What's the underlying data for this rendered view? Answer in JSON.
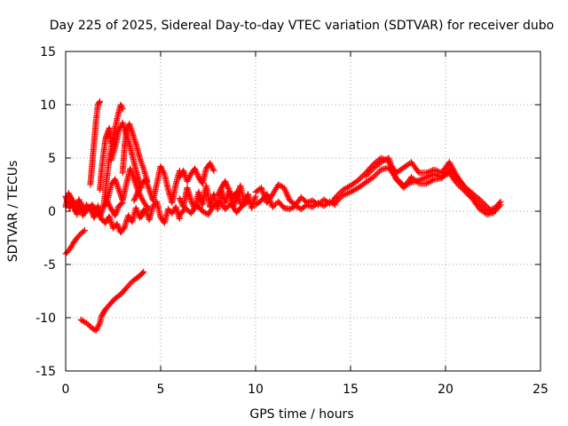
{
  "chart_data": {
    "type": "scatter",
    "title": "Day 225 of 2025, Sidereal Day-to-day VTEC variation (SDTVAR) for receiver dubo",
    "xlabel": "GPS time / hours",
    "ylabel": "SDTVAR / TECUs",
    "xlim": [
      0,
      25
    ],
    "ylim": [
      -15,
      15
    ],
    "xticks": [
      0,
      5,
      10,
      15,
      20,
      25
    ],
    "yticks": [
      -15,
      -10,
      -5,
      0,
      5,
      10,
      15
    ],
    "grid": true,
    "marker": "plus",
    "color": "#ff0000",
    "series": [
      {
        "name": "SDTVAR",
        "traces": [
          {
            "x": [
              0.0,
              0.2,
              0.4,
              0.6,
              0.8,
              1.0
            ],
            "y": [
              -4.0,
              -3.6,
              -3.0,
              -2.5,
              -2.1,
              -1.8
            ]
          },
          {
            "x": [
              0.8,
              1.1,
              1.4,
              1.6,
              1.8,
              1.9,
              2.1,
              2.3,
              2.6,
              2.9,
              3.2,
              3.5,
              3.8,
              4.0,
              4.1
            ],
            "y": [
              -10.2,
              -10.5,
              -11.0,
              -11.2,
              -10.5,
              -9.8,
              -9.2,
              -8.8,
              -8.2,
              -7.8,
              -7.2,
              -6.6,
              -6.2,
              -5.9,
              -5.7
            ]
          },
          {
            "x": [
              0.0,
              0.1,
              0.2,
              0.3,
              0.4,
              0.5,
              0.6,
              0.7,
              0.8,
              0.9,
              1.0,
              1.2,
              1.4,
              1.6,
              1.8,
              2.0,
              2.2,
              2.4,
              2.6,
              2.8,
              3.0
            ],
            "y": [
              1.4,
              0.9,
              0.3,
              0.6,
              1.0,
              0.2,
              -0.3,
              0.4,
              0.8,
              0.1,
              -0.2,
              0.3,
              0.6,
              0.0,
              -0.5,
              0.4,
              0.9,
              0.2,
              -0.4,
              0.5,
              0.8
            ]
          },
          {
            "x": [
              0.0,
              0.15,
              0.3,
              0.5,
              0.7,
              0.9,
              1.1,
              1.3,
              1.5,
              1.7,
              1.9,
              2.1,
              2.3,
              2.5,
              2.7,
              2.9,
              3.1,
              3.3,
              3.5,
              3.7,
              3.9,
              4.1
            ],
            "y": [
              0.4,
              1.7,
              1.2,
              0.0,
              1.1,
              -0.4,
              0.6,
              0.2,
              -0.6,
              0.5,
              -0.8,
              -1.1,
              -0.5,
              -1.6,
              -1.2,
              -2.0,
              -1.5,
              -0.4,
              -1.0,
              0.3,
              -0.6,
              0.1
            ]
          },
          {
            "x": [
              1.3,
              1.4,
              1.5,
              1.6,
              1.7,
              1.8
            ],
            "y": [
              2.5,
              4.5,
              6.5,
              8.5,
              10.0,
              10.3
            ]
          },
          {
            "x": [
              1.8,
              1.9,
              2.0,
              2.1,
              2.2,
              2.3,
              2.4
            ],
            "y": [
              2.0,
              4.0,
              5.5,
              6.8,
              7.3,
              7.8,
              6.4
            ]
          },
          {
            "x": [
              2.0,
              2.15,
              2.3,
              2.45,
              2.6,
              2.75,
              2.9,
              3.0
            ],
            "y": [
              0.5,
              2.8,
              5.0,
              6.5,
              7.8,
              9.0,
              10.0,
              9.6
            ]
          },
          {
            "x": [
              2.4,
              2.6,
              2.8,
              3.0,
              3.2,
              3.4,
              3.6,
              3.8,
              4.0
            ],
            "y": [
              4.8,
              6.0,
              7.6,
              8.3,
              7.2,
              6.0,
              4.6,
              3.2,
              2.2
            ]
          },
          {
            "x": [
              3.0,
              3.1,
              3.2,
              3.35,
              3.5,
              3.7,
              3.9,
              4.1,
              4.3
            ],
            "y": [
              3.6,
              6.0,
              7.5,
              8.2,
              7.4,
              6.3,
              5.0,
              4.0,
              2.8
            ]
          },
          {
            "x": [
              2.2,
              2.4,
              2.6,
              2.8,
              3.0,
              3.2,
              3.4,
              3.6,
              3.8,
              4.0,
              4.2,
              4.4
            ],
            "y": [
              1.0,
              2.5,
              3.0,
              2.0,
              1.0,
              2.6,
              4.0,
              3.0,
              2.0,
              1.2,
              0.6,
              0.2
            ]
          },
          {
            "x": [
              3.6,
              3.8,
              4.0,
              4.2,
              4.4,
              4.6,
              4.8,
              5.0,
              5.2,
              5.4,
              5.6,
              5.8,
              6.0
            ],
            "y": [
              1.0,
              1.8,
              2.5,
              3.0,
              2.0,
              1.0,
              2.6,
              4.2,
              3.5,
              2.0,
              0.8,
              2.5,
              3.8
            ]
          },
          {
            "x": [
              4.0,
              4.2,
              4.4,
              4.6,
              4.8,
              5.0,
              5.2,
              5.4,
              5.6,
              5.8,
              6.0
            ],
            "y": [
              -0.5,
              0.2,
              -0.8,
              0.5,
              0.9,
              -0.6,
              -1.1,
              0.2,
              -0.2,
              0.4,
              -0.7
            ]
          },
          {
            "x": [
              6.0,
              6.2,
              6.4,
              6.6,
              6.8,
              7.0,
              7.2,
              7.4,
              7.6,
              7.8
            ],
            "y": [
              3.2,
              3.8,
              2.8,
              3.5,
              4.0,
              3.2,
              2.6,
              4.0,
              4.5,
              3.8
            ]
          },
          {
            "x": [
              6.0,
              6.2,
              6.4,
              6.6,
              6.8,
              7.0,
              7.2,
              7.4,
              7.6,
              7.8,
              8.0,
              8.2,
              8.4,
              8.6,
              8.8,
              9.0,
              9.2,
              9.4,
              9.6,
              9.8,
              10.0
            ],
            "y": [
              1.2,
              0.4,
              2.2,
              1.0,
              0.2,
              1.8,
              0.6,
              2.4,
              0.4,
              1.6,
              0.2,
              2.0,
              0.8,
              1.8,
              0.4,
              1.2,
              2.4,
              0.8,
              1.6,
              0.3,
              1.4
            ]
          },
          {
            "x": [
              6.0,
              6.3,
              6.6,
              6.9,
              7.2,
              7.5,
              7.8,
              8.1,
              8.4,
              8.7,
              9.0,
              9.3,
              9.6
            ],
            "y": [
              -0.4,
              0.3,
              -0.2,
              0.6,
              0.0,
              -0.3,
              0.5,
              0.9,
              0.2,
              0.7,
              -0.1,
              0.5,
              0.9
            ]
          },
          {
            "x": [
              8.0,
              8.2,
              8.4,
              8.6,
              8.8,
              9.0,
              9.2
            ],
            "y": [
              1.5,
              2.2,
              2.8,
              2.0,
              1.2,
              1.8,
              0.7
            ]
          },
          {
            "x": [
              10.0,
              10.3,
              10.6,
              10.9,
              11.2,
              11.5,
              11.8,
              12.1,
              12.4,
              12.7,
              13.0,
              13.3,
              13.6,
              13.9,
              14.2
            ],
            "y": [
              1.8,
              2.2,
              0.8,
              1.6,
              2.5,
              2.2,
              1.0,
              0.6,
              1.3,
              0.8,
              1.0,
              0.6,
              1.1,
              0.7,
              1.2
            ]
          },
          {
            "x": [
              10.0,
              10.3,
              10.6,
              10.9,
              11.2,
              11.5,
              11.8,
              12.1,
              12.4,
              12.7,
              13.0,
              13.3,
              13.6,
              13.9,
              14.2
            ],
            "y": [
              0.6,
              1.0,
              1.6,
              0.4,
              0.9,
              0.3,
              0.2,
              0.5,
              0.2,
              0.6,
              0.4,
              0.8,
              0.5,
              0.9,
              0.6
            ]
          },
          {
            "x": [
              14.2,
              14.6,
              15.0,
              15.4,
              15.8,
              16.2,
              16.6,
              17.0,
              17.4,
              17.8,
              18.2,
              18.6,
              19.0,
              19.4,
              19.8,
              20.2,
              20.6,
              21.0,
              21.4,
              21.8,
              22.2,
              22.6,
              22.9
            ],
            "y": [
              1.3,
              2.0,
              2.4,
              2.9,
              3.6,
              4.4,
              5.0,
              4.7,
              3.6,
              4.1,
              4.6,
              3.6,
              3.6,
              3.9,
              3.6,
              4.6,
              3.3,
              2.2,
              1.3,
              0.6,
              0.0,
              0.3,
              0.9
            ]
          },
          {
            "x": [
              14.2,
              14.6,
              15.0,
              15.4,
              15.8,
              16.2,
              16.6,
              17.0,
              17.4,
              17.8,
              18.2,
              18.6,
              19.0,
              19.4,
              19.8,
              20.2,
              20.6,
              21.0,
              21.4,
              21.8,
              22.2,
              22.6,
              22.9
            ],
            "y": [
              0.8,
              1.5,
              1.8,
              2.2,
              2.7,
              3.2,
              3.9,
              4.1,
              3.1,
              2.4,
              2.7,
              2.9,
              3.2,
              3.5,
              3.2,
              3.6,
              2.6,
              1.9,
              1.2,
              0.2,
              -0.3,
              0.0,
              0.6
            ]
          },
          {
            "x": [
              15.8,
              16.2,
              16.6,
              17.0,
              17.4,
              17.8,
              18.2,
              18.6,
              19.0,
              19.4,
              19.8,
              20.2,
              20.6,
              21.0,
              21.4,
              21.8,
              22.2,
              22.5
            ],
            "y": [
              3.3,
              4.0,
              4.6,
              5.0,
              3.0,
              2.2,
              3.2,
              2.6,
              2.6,
              3.0,
              3.1,
              4.0,
              3.2,
              2.3,
              1.7,
              1.1,
              0.4,
              -0.2
            ]
          }
        ]
      }
    ]
  }
}
